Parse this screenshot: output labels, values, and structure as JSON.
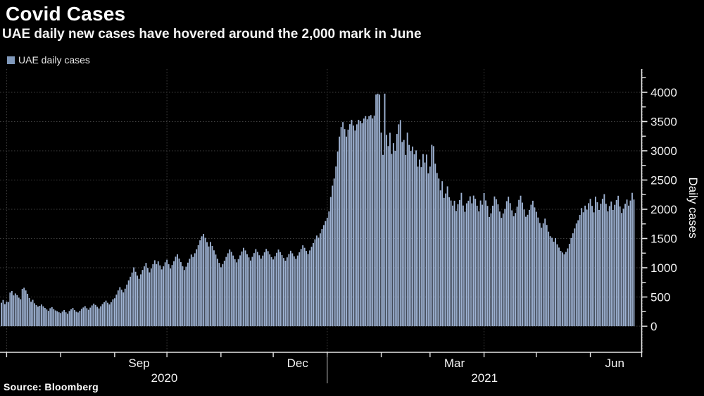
{
  "header": {
    "title": "Covid Cases",
    "subtitle": "UAE daily new cases have hovered around the 2,000 mark in June"
  },
  "legend": {
    "label": "UAE daily cases",
    "swatch_color": "#8099bb"
  },
  "source_line": "Source: Bloomberg",
  "colors": {
    "background": "#000000",
    "bar": "#9db1d1",
    "grid": "#3f3f3f",
    "axis": "#e6e6e6",
    "text": "#f2f2f2",
    "year_divider": "#999999"
  },
  "chart_data": {
    "type": "bar",
    "title": "Covid Cases",
    "series_name": "UAE daily cases",
    "xlabel": "",
    "ylabel": "Daily cases",
    "ylim": [
      0,
      4000
    ],
    "y_tick_step": 500,
    "y_minor_tick_step": 250,
    "grid": "dotted horizontal at every 500, dotted vertical at quarter starts",
    "legend_position": "top-left",
    "frequency": "daily",
    "start_date": "2020-06-28",
    "end_date": "2021-06-26",
    "month_labels": [
      {
        "label": "Sep",
        "month": "2020-09"
      },
      {
        "label": "Dec",
        "month": "2020-12"
      },
      {
        "label": "Mar",
        "month": "2021-03"
      },
      {
        "label": "Jun",
        "month": "2021-06"
      }
    ],
    "year_labels": [
      "2020",
      "2021"
    ],
    "values": [
      402,
      449,
      378,
      421,
      415,
      576,
      603,
      528,
      561,
      532,
      489,
      462,
      638,
      658,
      612,
      555,
      483,
      419,
      452,
      393,
      361,
      336,
      349,
      372,
      341,
      313,
      287,
      264,
      308,
      327,
      294,
      271,
      258,
      239,
      226,
      251,
      277,
      239,
      215,
      261,
      289,
      312,
      276,
      248,
      236,
      264,
      297,
      321,
      344,
      309,
      282,
      318,
      356,
      387,
      364,
      332,
      305,
      341,
      379,
      411,
      438,
      402,
      373,
      412,
      461,
      479,
      541,
      612,
      668,
      624,
      579,
      642,
      712,
      783,
      846,
      919,
      1007,
      931,
      866,
      812,
      887,
      962,
      1024,
      1083,
      998,
      921,
      989,
      1061,
      1128,
      1062,
      1111,
      1041,
      972,
      1026,
      1093,
      1138,
      1061,
      989,
      1046,
      1113,
      1189,
      1231,
      1158,
      1096,
      1027,
      961,
      1018,
      1087,
      1154,
      1226,
      1184,
      1248,
      1316,
      1387,
      1469,
      1538,
      1578,
      1512,
      1438,
      1364,
      1441,
      1373,
      1298,
      1226,
      1154,
      1083,
      1008,
      1063,
      1121,
      1185,
      1248,
      1312,
      1271,
      1209,
      1146,
      1092,
      1149,
      1212,
      1278,
      1341,
      1296,
      1232,
      1178,
      1124,
      1186,
      1251,
      1319,
      1271,
      1214,
      1157,
      1208,
      1264,
      1322,
      1284,
      1229,
      1181,
      1142,
      1198,
      1256,
      1311,
      1268,
      1216,
      1167,
      1121,
      1178,
      1234,
      1291,
      1247,
      1196,
      1153,
      1209,
      1264,
      1322,
      1384,
      1341,
      1288,
      1236,
      1296,
      1358,
      1422,
      1488,
      1551,
      1514,
      1588,
      1662,
      1730,
      1798,
      1856,
      1963,
      2210,
      2404,
      2526,
      2731,
      2988,
      3243,
      3407,
      3491,
      3371,
      3243,
      3362,
      3456,
      3529,
      3431,
      3346,
      3453,
      3529,
      3506,
      3471,
      3551,
      3593,
      3539,
      3591,
      3611,
      3552,
      3601,
      3962,
      3977,
      3961,
      3310,
      2930,
      3977,
      3272,
      3081,
      3308,
      2948,
      3131,
      3000,
      3288,
      3453,
      3525,
      3150,
      3185,
      2930,
      3310,
      3100,
      2998,
      3072,
      2940,
      3007,
      2730,
      2850,
      2721,
      2944,
      2800,
      2936,
      2613,
      2730,
      3102,
      3080,
      2779,
      2620,
      2526,
      2323,
      2480,
      2195,
      2270,
      2392,
      2205,
      2150,
      2063,
      2146,
      1971,
      2088,
      2157,
      2281,
      2064,
      1958,
      2102,
      2146,
      2222,
      2102,
      2234,
      2179,
      2061,
      1964,
      2150,
      2078,
      2278,
      2151,
      2058,
      1869,
      1931,
      2061,
      2219,
      2172,
      2085,
      1961,
      1853,
      1928,
      2006,
      2139,
      2215,
      2105,
      1982,
      1880,
      1937,
      2044,
      2160,
      2232,
      2114,
      1996,
      1872,
      1906,
      1988,
      2078,
      2146,
      2032,
      1957,
      1859,
      1766,
      1685,
      1759,
      1840,
      1732,
      1618,
      1540,
      1512,
      1446,
      1506,
      1401,
      1345,
      1289,
      1261,
      1229,
      1270,
      1331,
      1410,
      1508,
      1589,
      1672,
      1757,
      1812,
      1903,
      2021,
      1949,
      2062,
      1994,
      2104,
      2179,
      2058,
      1948,
      2216,
      2120,
      1989,
      2095,
      2180,
      2259,
      2094,
      1964,
      2055,
      2132,
      1988,
      2076,
      2157,
      2231,
      2048,
      1937,
      2011,
      2094,
      2166,
      2062,
      2149,
      2281,
      2167
    ]
  }
}
